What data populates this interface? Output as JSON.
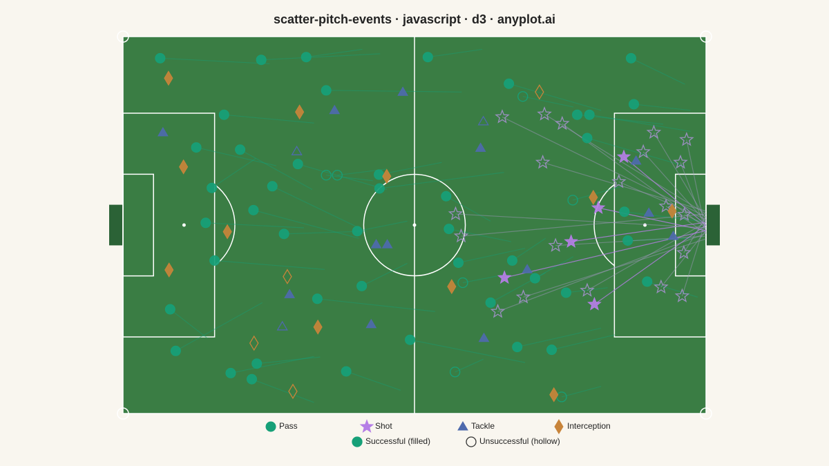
{
  "chart_data": {
    "type": "scatter",
    "title": "scatter-pitch-events · javascript · d3 · anyplot.ai",
    "xlim": [
      0,
      105
    ],
    "ylim": [
      0,
      68
    ],
    "success_legend": [
      "Successful (filled)",
      "Unsuccessful (hollow)"
    ],
    "series": [
      {
        "name": "Pass",
        "color": "#17a078",
        "marker": "circle",
        "x": [
          6.7,
          24.9,
          33.0,
          54.9,
          91.5,
          36.6,
          69.5,
          18.2,
          92.0,
          81.8,
          84.0,
          83.6,
          13.2,
          21.1,
          31.5,
          46.1,
          46.2,
          16.0,
          26.9,
          23.5,
          58.2,
          14.9,
          29.0,
          42.2,
          58.7,
          90.3,
          90.9,
          16.5,
          60.4,
          70.1,
          74.2,
          43.0,
          35.0,
          79.8,
          94.4,
          8.5,
          66.2,
          51.7,
          9.5,
          24.1,
          19.4,
          23.2,
          40.2,
          71.0,
          77.2,
          72.0,
          36.6,
          38.6,
          81.0,
          61.2,
          59.8,
          79.0
        ],
        "y": [
          64.1,
          63.8,
          64.3,
          64.3,
          64.1,
          58.3,
          59.5,
          53.9,
          55.8,
          53.9,
          53.9,
          49.7,
          48.0,
          47.6,
          45.0,
          43.1,
          40.6,
          40.7,
          41.0,
          36.7,
          39.2,
          34.4,
          32.4,
          32.9,
          33.3,
          36.4,
          31.2,
          27.6,
          27.2,
          27.6,
          24.4,
          23.0,
          20.7,
          21.8,
          23.8,
          18.8,
          20.0,
          13.3,
          11.3,
          9.0,
          7.3,
          6.2,
          7.6,
          12.0,
          11.5,
          57.2,
          43.0,
          43.0,
          38.5,
          23.6,
          7.5,
          3.0
        ],
        "end_x": [
          26.4,
          46.3,
          43.1,
          64.7,
          101.2,
          61.0,
          86.1,
          34.4,
          102.2,
          97.3,
          102.2,
          101.0,
          27.6,
          34.1,
          47.5,
          57.4,
          68.6,
          23.9,
          42.5,
          42.5,
          66.2,
          32.6,
          43.8,
          51.2,
          69.9,
          104.1,
          102.2,
          36.3,
          72.4,
          76.1,
          81.1,
          51.2,
          56.2,
          87.3,
          103.5,
          15.2,
          76.1,
          72.4,
          25.1,
          35.5,
          34.4,
          34.4,
          50.0,
          86.1,
          88.6,
          81.1,
          45.0,
          47.5,
          89.8,
          67.4,
          64.9,
          86.1
        ],
        "end_y": [
          63.1,
          64.9,
          65.7,
          65.7,
          59.4,
          58.0,
          54.7,
          52.4,
          54.7,
          52.2,
          50.9,
          44.7,
          44.7,
          40.4,
          40.4,
          45.3,
          43.5,
          46.0,
          33.5,
          31.6,
          34.7,
          33.5,
          32.9,
          34.7,
          31.0,
          34.7,
          31.6,
          26.0,
          29.8,
          31.6,
          28.3,
          27.1,
          18.4,
          22.7,
          21.0,
          13.6,
          25.4,
          9.2,
          20.0,
          10.2,
          10.3,
          2.0,
          4.2,
          15.4,
          14.2,
          55.3,
          42.0,
          44.1,
          41.0,
          24.8,
          9.8,
          4.9
        ],
        "success": [
          true,
          true,
          true,
          true,
          true,
          true,
          true,
          true,
          true,
          true,
          true,
          true,
          true,
          true,
          true,
          true,
          true,
          true,
          true,
          true,
          true,
          true,
          true,
          true,
          true,
          true,
          true,
          true,
          true,
          true,
          true,
          true,
          true,
          true,
          true,
          true,
          true,
          true,
          true,
          true,
          true,
          true,
          true,
          true,
          true,
          false,
          false,
          false,
          false,
          false,
          false,
          false
        ]
      },
      {
        "name": "Shot",
        "color": "#b57ee6",
        "marker": "star",
        "x": [
          90.2,
          85.6,
          80.7,
          68.7,
          84.9,
          68.3,
          75.9,
          79.1,
          95.6,
          101.5,
          93.7,
          100.4,
          75.6,
          89.3,
          97.8,
          101.1,
          59.9,
          60.9,
          77.9,
          101.0,
          72.1,
          83.6,
          96.9,
          100.7,
          67.5
        ],
        "y": [
          46.3,
          37.1,
          31.0,
          24.5,
          19.7,
          53.5,
          54.0,
          52.3,
          50.7,
          49.4,
          47.2,
          45.3,
          45.3,
          41.8,
          37.4,
          35.9,
          36.0,
          32.0,
          30.3,
          29.0,
          21.0,
          22.2,
          22.8,
          21.2,
          18.4
        ],
        "end_x": [
          105,
          105,
          105,
          105,
          105,
          105,
          105,
          105,
          105,
          105,
          105,
          105,
          105,
          105,
          105,
          105,
          105,
          105,
          105,
          105,
          105,
          105,
          105,
          105,
          105
        ],
        "end_y": [
          34.0,
          33.0,
          34.5,
          33.0,
          34.0,
          35.5,
          36.0,
          33.5,
          35.0,
          32.5,
          34.5,
          33.0,
          36.5,
          35.0,
          32.5,
          34.0,
          33.5,
          36.0,
          32.0,
          35.5,
          31.5,
          34.5,
          33.0,
          35.0,
          32.5
        ],
        "success": [
          true,
          true,
          true,
          true,
          true,
          false,
          false,
          false,
          false,
          false,
          false,
          false,
          false,
          false,
          false,
          false,
          false,
          false,
          false,
          false,
          false,
          false,
          false,
          false,
          false
        ]
      },
      {
        "name": "Tackle",
        "color": "#4e6aad",
        "marker": "triangle",
        "x": [
          50.4,
          38.1,
          7.2,
          64.4,
          92.4,
          94.7,
          45.6,
          47.6,
          99.1,
          72.8,
          30.0,
          44.7,
          65.0,
          64.9,
          31.3,
          28.7
        ],
        "y": [
          58.0,
          54.7,
          50.7,
          47.9,
          45.6,
          36.2,
          30.5,
          30.5,
          32.0,
          26.0,
          21.5,
          16.1,
          13.6,
          52.7,
          47.3,
          15.7
        ],
        "success": [
          true,
          true,
          true,
          true,
          true,
          true,
          true,
          true,
          true,
          true,
          true,
          true,
          true,
          false,
          false,
          false
        ]
      },
      {
        "name": "Interception",
        "color": "#c8843a",
        "marker": "diamond",
        "x": [
          8.2,
          31.8,
          10.9,
          47.5,
          18.8,
          84.7,
          98.9,
          8.3,
          59.2,
          35.1,
          77.6,
          75.0,
          29.6,
          23.6,
          30.6
        ],
        "y": [
          60.5,
          54.4,
          44.5,
          42.8,
          32.8,
          39.0,
          36.5,
          25.9,
          22.9,
          15.6,
          3.4,
          58.0,
          24.7,
          12.7,
          4.0
        ],
        "success": [
          true,
          true,
          true,
          true,
          true,
          true,
          true,
          true,
          true,
          true,
          true,
          false,
          false,
          false,
          false
        ]
      }
    ]
  }
}
